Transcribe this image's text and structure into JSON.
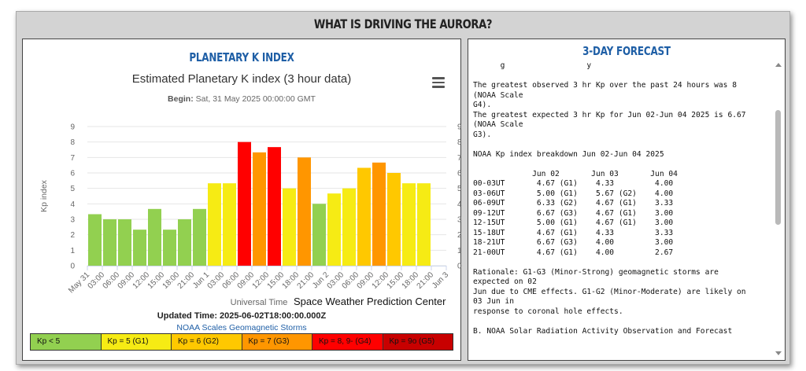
{
  "page": {
    "title": "WHAT IS DRIVING THE AURORA?"
  },
  "left_panel": {
    "title": "PLANETARY K INDEX",
    "begin_label": "Begin:",
    "begin_value": "Sat, 31 May 2025 00:00:00 GMT",
    "source": "Space Weather Prediction Center",
    "updated_label": "Updated Time:",
    "updated_value": "2025-06-02T18:00:00.000Z",
    "scales_link": "NOAA Scales Geomagnetic Storms",
    "menu_icon": "hamburger-menu-icon"
  },
  "scale_legend": [
    {
      "label": "Kp < 5",
      "color": "#92d050"
    },
    {
      "label": "Kp = 5 (G1)",
      "color": "#f6eb14"
    },
    {
      "label": "Kp = 6 (G2)",
      "color": "#ffc800"
    },
    {
      "label": "Kp = 7 (G3)",
      "color": "#ff9600"
    },
    {
      "label": "Kp = 8, 9- (G4)",
      "color": "#ff0000"
    },
    {
      "label": "Kp = 9o (G5)",
      "color": "#c80000"
    }
  ],
  "chart_data": {
    "type": "bar",
    "title": "Estimated Planetary K index (3 hour data)",
    "xlabel": "Universal Time",
    "ylabel": "Kp index",
    "ylim": [
      0,
      9
    ],
    "yticks": [
      0,
      1,
      2,
      3,
      4,
      5,
      6,
      7,
      8,
      9
    ],
    "grid": true,
    "x_tick_labels": [
      "May 31",
      "03:00",
      "06:00",
      "09:00",
      "12:00",
      "15:00",
      "18:00",
      "21:00",
      "Jun 1",
      "03:00",
      "06:00",
      "09:00",
      "12:00",
      "15:00",
      "18:00",
      "21:00",
      "Jun 2",
      "03:00",
      "06:00",
      "09:00",
      "12:00",
      "15:00",
      "18:00",
      "21:00",
      "Jun 3"
    ],
    "values": [
      3.33,
      3.0,
      3.0,
      2.33,
      3.67,
      2.33,
      3.0,
      3.67,
      5.33,
      5.33,
      8.0,
      7.33,
      7.67,
      5.0,
      7.0,
      4.0,
      4.67,
      5.0,
      6.33,
      6.67,
      6.0,
      5.33,
      5.33
    ],
    "bar_colors": [
      "#92d050",
      "#92d050",
      "#92d050",
      "#92d050",
      "#92d050",
      "#92d050",
      "#92d050",
      "#92d050",
      "#f6eb14",
      "#f6eb14",
      "#ff0000",
      "#ff9600",
      "#ff0000",
      "#f6eb14",
      "#ff9600",
      "#92d050",
      "#f6eb14",
      "#f6eb14",
      "#ffc800",
      "#ff9600",
      "#ffc800",
      "#f6eb14",
      "#f6eb14"
    ]
  },
  "right_panel": {
    "title": "3-DAY FORECAST",
    "lines": [
      "      g                  y",
      "",
      "The greatest observed 3 hr Kp over the past 24 hours was 8",
      "(NOAA Scale",
      "G4).",
      "The greatest expected 3 hr Kp for Jun 02-Jun 04 2025 is 6.67",
      "(NOAA Scale",
      "G3).",
      "",
      "NOAA Kp index breakdown Jun 02-Jun 04 2025",
      "",
      "             Jun 02       Jun 03       Jun 04",
      "00-03UT       4.67 (G1)    4.33         4.00",
      "03-06UT       5.00 (G1)    5.67 (G2)    4.00",
      "06-09UT       6.33 (G2)    4.67 (G1)    3.33",
      "09-12UT       6.67 (G3)    4.67 (G1)    3.00",
      "12-15UT       5.00 (G1)    4.67 (G1)    3.00",
      "15-18UT       4.67 (G1)    4.33         3.33",
      "18-21UT       6.67 (G3)    4.00         3.00",
      "21-00UT       4.67 (G1)    4.00         2.67",
      "",
      "Rationale: G1-G3 (Minor-Strong) geomagnetic storms are",
      "expected on 02",
      "Jun due to CME effects. G1-G2 (Minor-Moderate) are likely on",
      "03 Jun in",
      "response to coronal hole effects.",
      "",
      "B. NOAA Solar Radiation Activity Observation and Forecast"
    ]
  }
}
